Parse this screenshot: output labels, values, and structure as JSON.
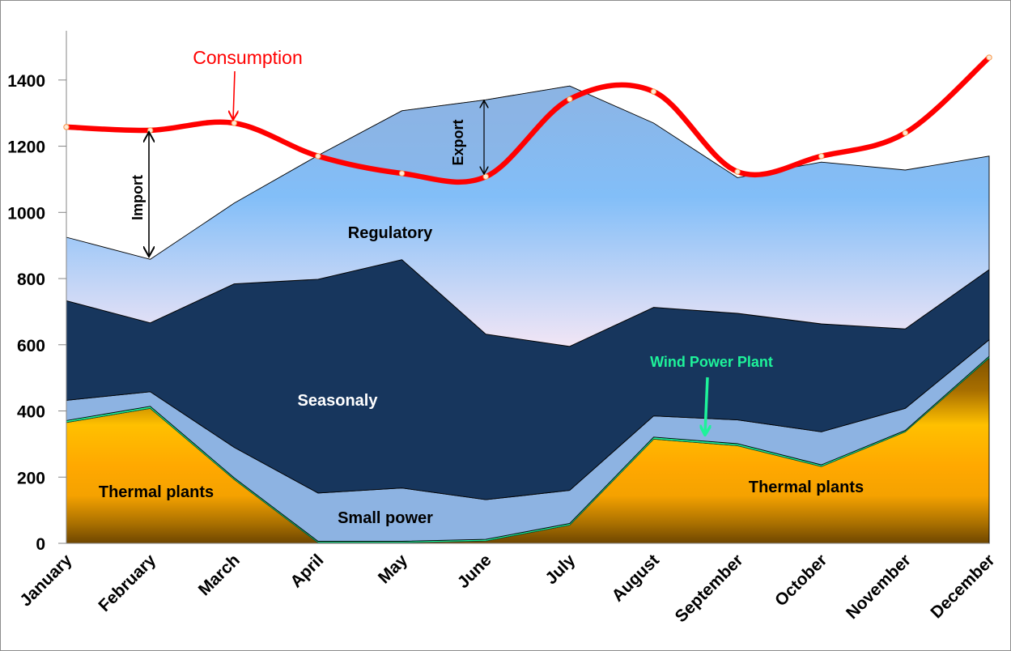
{
  "chart_data": {
    "type": "area",
    "title": "",
    "xlabel": "",
    "ylabel": "",
    "ylim": [
      0,
      1550
    ],
    "yticks": [
      0,
      200,
      400,
      600,
      800,
      1000,
      1200,
      1400
    ],
    "grid": false,
    "legend": "none",
    "categories": [
      "January",
      "February",
      "March",
      "April",
      "May",
      "June",
      "July",
      "August",
      "September",
      "October",
      "November",
      "December"
    ],
    "stacked_series": [
      {
        "name": "Thermal plants",
        "color": "#ffa500",
        "values": [
          365,
          408,
          193,
          2,
          2,
          7,
          55,
          315,
          295,
          232,
          337,
          560
        ]
      },
      {
        "name": "Wind Power Plant",
        "color": "#1ef29a",
        "values": [
          6,
          6,
          5,
          4,
          4,
          5,
          5,
          6,
          6,
          5,
          4,
          5
        ]
      },
      {
        "name": "Small power",
        "color": "#8db3e2",
        "values": [
          61,
          44,
          92,
          146,
          161,
          120,
          100,
          64,
          72,
          100,
          67,
          50
        ]
      },
      {
        "name": "Seasonaly",
        "color": "#17365d",
        "values": [
          301,
          208,
          494,
          646,
          690,
          500,
          435,
          328,
          322,
          326,
          240,
          212
        ]
      },
      {
        "name": "Regulatory",
        "color": "#83bef8",
        "values": [
          192,
          192,
          244,
          374,
          450,
          708,
          787,
          557,
          410,
          489,
          480,
          343
        ]
      }
    ],
    "line_series": [
      {
        "name": "Consumption",
        "color": "#ff0000",
        "values": [
          1258,
          1248,
          1270,
          1170,
          1118,
          1108,
          1342,
          1365,
          1123,
          1170,
          1240,
          1468
        ]
      }
    ],
    "annotations": [
      {
        "text": "Consumption",
        "target": "March"
      },
      {
        "text": "Import",
        "at": "February"
      },
      {
        "text": "Export",
        "at": "June"
      },
      {
        "text": "Wind Power Plant",
        "target": "September"
      },
      {
        "text": "Regulatory"
      },
      {
        "text": "Seasonaly"
      },
      {
        "text": "Small power"
      },
      {
        "text": "Thermal plants"
      },
      {
        "text": "Thermal plants"
      }
    ]
  },
  "labels": {
    "consumption": "Consumption",
    "import": "Import",
    "export": "Export",
    "wind": "Wind Power Plant",
    "regulatory": "Regulatory",
    "seasonal": "Seasonaly",
    "small_power": "Small power",
    "thermal_left": "Thermal plants",
    "thermal_right": "Thermal plants"
  }
}
